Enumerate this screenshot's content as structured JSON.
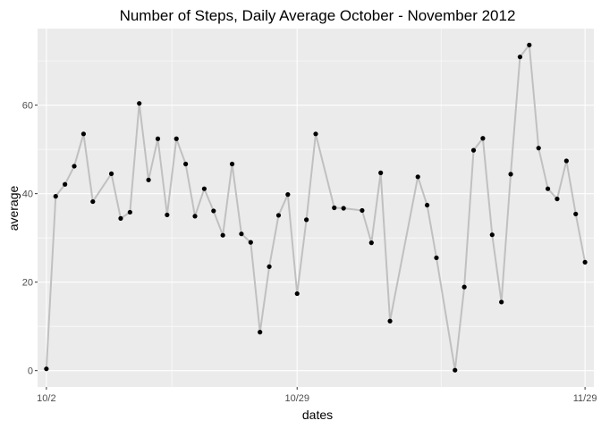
{
  "chart_data": {
    "type": "line",
    "title": "Number of Steps, Daily Average October - November 2012",
    "xlabel": "dates",
    "ylabel": "average",
    "x_tick_labels": [
      "10/2",
      "10/29",
      "11/29"
    ],
    "y_tick_labels": [
      "0",
      "20",
      "40",
      "60"
    ],
    "y_ticks": [
      0,
      20,
      40,
      60
    ],
    "ylim": [
      -3.7,
      77.3
    ],
    "x_start_date": "2012-10-02",
    "x_tick_dates": [
      "2012-10-02",
      "2012-10-29",
      "2012-11-29"
    ],
    "grid": true,
    "legend": "none",
    "colors": {
      "panel": "#ebebeb",
      "grid": "#ffffff",
      "line": "#c0c0c0",
      "point": "#000000"
    },
    "x": [
      "2012-10-02",
      "2012-10-03",
      "2012-10-04",
      "2012-10-05",
      "2012-10-06",
      "2012-10-07",
      "2012-10-09",
      "2012-10-10",
      "2012-10-11",
      "2012-10-12",
      "2012-10-13",
      "2012-10-14",
      "2012-10-15",
      "2012-10-16",
      "2012-10-17",
      "2012-10-18",
      "2012-10-19",
      "2012-10-20",
      "2012-10-21",
      "2012-10-22",
      "2012-10-23",
      "2012-10-24",
      "2012-10-25",
      "2012-10-26",
      "2012-10-27",
      "2012-10-28",
      "2012-10-29",
      "2012-10-30",
      "2012-10-31",
      "2012-11-02",
      "2012-11-03",
      "2012-11-05",
      "2012-11-06",
      "2012-11-07",
      "2012-11-08",
      "2012-11-11",
      "2012-11-12",
      "2012-11-13",
      "2012-11-15",
      "2012-11-16",
      "2012-11-17",
      "2012-11-18",
      "2012-11-19",
      "2012-11-20",
      "2012-11-21",
      "2012-11-22",
      "2012-11-23",
      "2012-11-24",
      "2012-11-25",
      "2012-11-26",
      "2012-11-27",
      "2012-11-28",
      "2012-11-29"
    ],
    "values": [
      0.4,
      39.4,
      42.1,
      46.2,
      53.5,
      38.2,
      44.5,
      34.4,
      35.8,
      60.4,
      43.1,
      52.4,
      35.2,
      52.4,
      46.7,
      34.9,
      41.1,
      36.1,
      30.6,
      46.7,
      30.9,
      29.0,
      8.7,
      23.5,
      35.1,
      39.8,
      17.4,
      34.1,
      53.5,
      36.8,
      36.7,
      36.2,
      28.9,
      44.7,
      11.2,
      43.8,
      37.4,
      25.5,
      0.1,
      18.9,
      49.8,
      52.5,
      30.7,
      15.5,
      44.4,
      70.9,
      73.6,
      50.3,
      41.1,
      38.8,
      47.4,
      35.4,
      24.5
    ]
  }
}
